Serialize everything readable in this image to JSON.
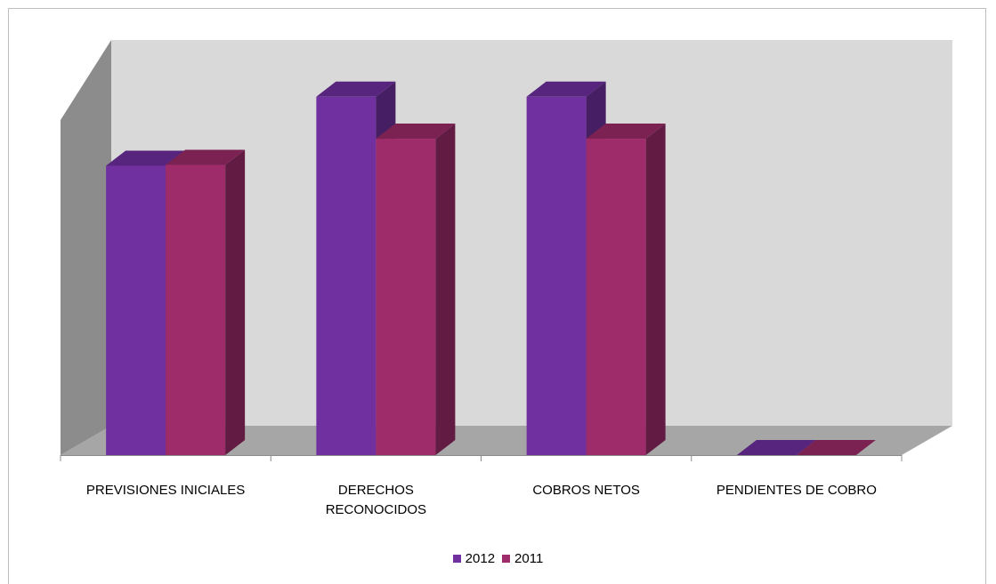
{
  "chart_data": {
    "type": "bar",
    "categories": [
      [
        "PREVISIONES INICIALES"
      ],
      [
        "DERECHOS",
        "RECONOCIDOS"
      ],
      [
        "COBROS NETOS"
      ],
      [
        "PENDIENTES DE COBRO"
      ]
    ],
    "series": [
      {
        "name": "2012",
        "values": [
          310,
          384,
          384,
          0
        ],
        "color": "#7030a0"
      },
      {
        "name": "2011",
        "values": [
          311,
          339,
          339,
          0
        ],
        "color": "#9e2c6b"
      }
    ],
    "ylim": [
      0,
      400
    ],
    "grid": false,
    "three_d": true,
    "legend_position": "bottom"
  }
}
